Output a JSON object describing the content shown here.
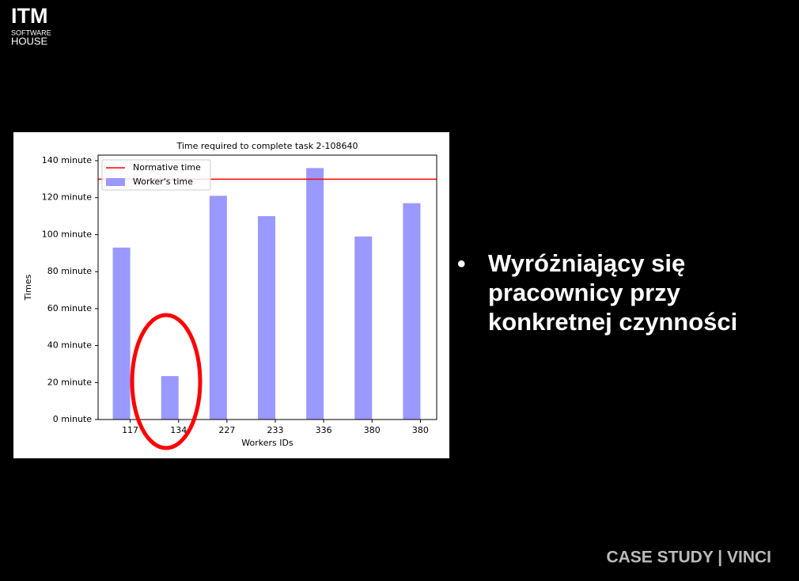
{
  "logo": {
    "line1": "ITM",
    "line2": "SOFTWARE",
    "line3": "HOUSE"
  },
  "chart_data": {
    "type": "bar",
    "title": "Time required to complete task 2-108640",
    "x_label": "Workers IDs",
    "y_label": "Times",
    "categories": [
      "117",
      "134",
      "227",
      "233",
      "336",
      "380",
      "380"
    ],
    "series": [
      {
        "name": "Worker's time",
        "color": "#9999ff",
        "values": [
          93,
          23.5,
          121,
          110,
          136,
          99,
          117
        ]
      }
    ],
    "reference_line": {
      "name": "Normative time",
      "color": "#ff0000",
      "value": 130
    },
    "ylim": [
      0,
      143
    ],
    "yticks": [
      {
        "value": 0,
        "label": "0 minute"
      },
      {
        "value": 20,
        "label": "20 minute"
      },
      {
        "value": 40,
        "label": "40 minute"
      },
      {
        "value": 60,
        "label": "60 minute"
      },
      {
        "value": 80,
        "label": "80 minute"
      },
      {
        "value": 100,
        "label": "100 minute"
      },
      {
        "value": 120,
        "label": "120 minute"
      },
      {
        "value": 140,
        "label": "140 minute"
      }
    ],
    "legend": "upper left"
  },
  "bullet": {
    "lines": [
      "Wyróżniający się",
      "pracownicy przy",
      "konkretnej czynności"
    ]
  },
  "footer": "CASE STUDY | VINCI"
}
